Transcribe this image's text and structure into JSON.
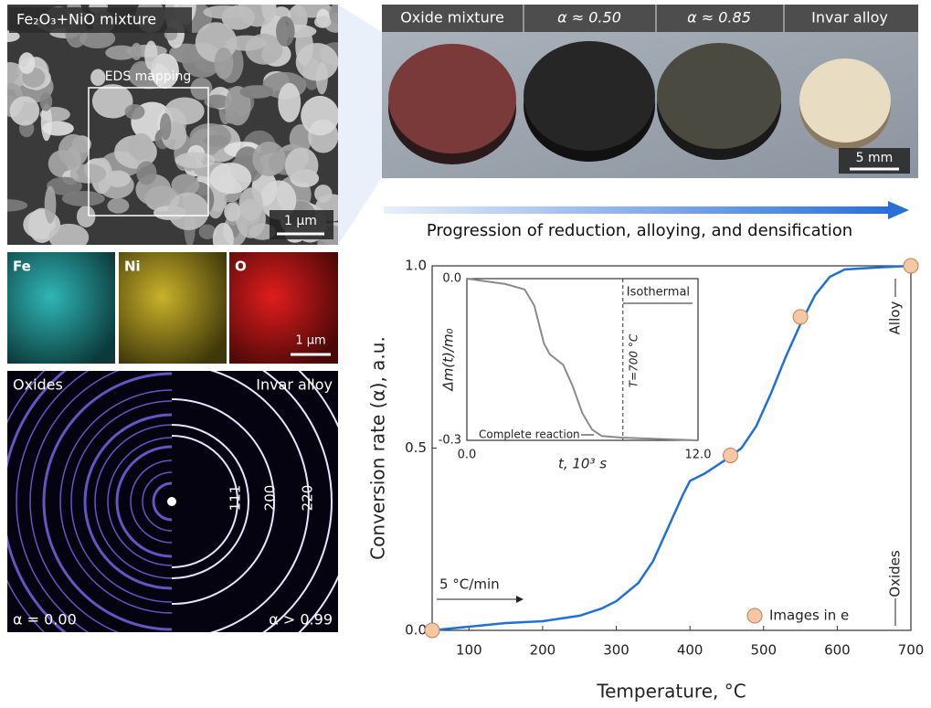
{
  "panels": {
    "sem": {
      "title": "Fe₂O₃+NiO mixture",
      "box_label": "EDS mapping",
      "scale_bar": "1 μm"
    },
    "eds": {
      "labels": [
        "Fe",
        "Ni",
        "O"
      ],
      "scale_bar": "1 μm"
    },
    "diffraction": {
      "left_title": "Oxides",
      "right_title": "Invar alloy",
      "rings": [
        "111",
        "200",
        "220"
      ],
      "left_alpha": "α = 0.00",
      "right_alpha": "α > 0.99"
    },
    "photo": {
      "headers": [
        "Oxide mixture",
        "α ≈ 0.50",
        "α ≈ 0.85",
        "Invar alloy"
      ],
      "scale_bar": "5 mm"
    },
    "caption": "Progression of reduction, alloying, and densification"
  },
  "chart_data": [
    {
      "type": "line",
      "xlabel": "Temperature, °C",
      "ylabel": "Conversion rate (α), a.u.",
      "xlim": [
        50,
        700
      ],
      "ylim": [
        0,
        1
      ],
      "xticks": [
        100,
        200,
        300,
        400,
        500,
        600,
        700
      ],
      "yticks": [
        {
          "value": 0,
          "label": "0.0"
        },
        {
          "value": 0.5,
          "label": "0.5"
        },
        {
          "value": 1,
          "label": "1.0"
        }
      ],
      "series": [
        {
          "color": "#2270d6",
          "x": [
            50,
            100,
            150,
            200,
            250,
            280,
            300,
            330,
            350,
            370,
            390,
            400,
            420,
            450,
            470,
            490,
            510,
            530,
            550,
            570,
            590,
            610,
            650,
            700
          ],
          "values": [
            0,
            0.01,
            0.02,
            0.025,
            0.04,
            0.06,
            0.08,
            0.13,
            0.19,
            0.28,
            0.37,
            0.41,
            0.43,
            0.47,
            0.5,
            0.56,
            0.65,
            0.75,
            0.84,
            0.92,
            0.97,
            0.99,
            0.995,
            1.0
          ]
        },
        {
          "name": "Images in e",
          "type": "scatter",
          "color": "#f6c7a3",
          "x": [
            50,
            455,
            550,
            700
          ],
          "values": [
            0,
            0.48,
            0.86,
            1.0
          ]
        }
      ],
      "annotations": [
        "5 °C/min",
        "Alloy",
        "Oxides"
      ]
    },
    {
      "type": "line",
      "xlabel": "t, 10³ s",
      "ylabel": "Δm(t)/m₀",
      "xlim": [
        0,
        12
      ],
      "ylim": [
        -0.3,
        0
      ],
      "xticks": [
        {
          "value": 0,
          "label": "0.0"
        },
        {
          "value": 12,
          "label": "12.0"
        }
      ],
      "yticks": [
        {
          "value": 0,
          "label": "0.0"
        },
        {
          "value": -0.3,
          "label": "-0.3"
        }
      ],
      "vline": 8.1,
      "series": [
        {
          "color": "#8a8a8a",
          "x": [
            0,
            1,
            2,
            3,
            3.5,
            4,
            4.3,
            5,
            5.5,
            6,
            6.5,
            7,
            8,
            12
          ],
          "values": [
            0,
            -0.005,
            -0.01,
            -0.02,
            -0.05,
            -0.12,
            -0.14,
            -0.16,
            -0.2,
            -0.25,
            -0.28,
            -0.292,
            -0.295,
            -0.3
          ]
        }
      ],
      "annotations": [
        "Isothermal",
        "T=700 °C",
        "Complete reaction"
      ]
    }
  ]
}
